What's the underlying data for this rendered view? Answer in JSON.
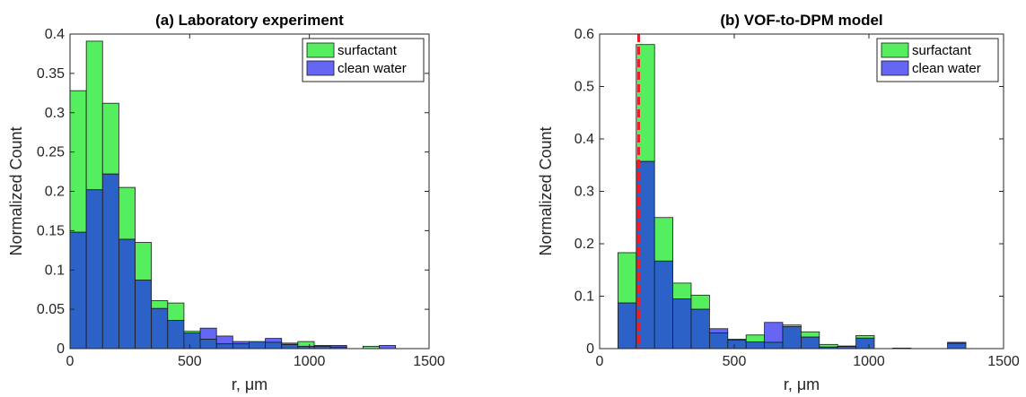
{
  "chart_data": [
    {
      "type": "bar",
      "title": "(a)  Laboratory experiment",
      "xlabel": "r, μm",
      "ylabel": "Normalized Count",
      "xlim": [
        0,
        1500
      ],
      "ylim": [
        0,
        0.4
      ],
      "xticks": [
        0,
        500,
        1000,
        1500
      ],
      "yticks": [
        0,
        0.05,
        0.1,
        0.15,
        0.2,
        0.25,
        0.3,
        0.35,
        0.4
      ],
      "ytick_labels": [
        "0",
        "0.05",
        "0.1",
        "0.15",
        "0.2",
        "0.25",
        "0.3",
        "0.35",
        "0.4"
      ],
      "legend_position": "top-right",
      "bin_edges": [
        0,
        68,
        136,
        204,
        272,
        340,
        408,
        476,
        544,
        612,
        680,
        748,
        816,
        884,
        952,
        1020,
        1088,
        1156,
        1224,
        1292,
        1360
      ],
      "overlap_color": "#2c62c8",
      "series": [
        {
          "name": "surfactant",
          "color": "#55ee5e",
          "values": [
            0.328,
            0.391,
            0.312,
            0.205,
            0.135,
            0.061,
            0.058,
            0.022,
            0.012,
            0.006,
            0.006,
            0.009,
            0.008,
            0.005,
            0.009,
            0.003,
            0.002,
            0.0,
            0.003,
            0.0
          ]
        },
        {
          "name": "clean water",
          "color": "#6566f3",
          "values": [
            0.148,
            0.202,
            0.222,
            0.139,
            0.087,
            0.051,
            0.036,
            0.02,
            0.026,
            0.016,
            0.009,
            0.009,
            0.013,
            0.007,
            0.003,
            0.004,
            0.004,
            0.0,
            0.0,
            0.004
          ]
        }
      ]
    },
    {
      "type": "bar",
      "title": "(b) VOF-to-DPM model",
      "xlabel": "r, μm",
      "ylabel": "Normalized Count",
      "xlim": [
        0,
        1500
      ],
      "ylim": [
        0,
        0.6
      ],
      "xticks": [
        0,
        500,
        1000,
        1500
      ],
      "yticks": [
        0,
        0.1,
        0.2,
        0.3,
        0.4,
        0.5,
        0.6
      ],
      "ytick_labels": [
        "0",
        "0.1",
        "0.2",
        "0.3",
        "0.4",
        "0.5",
        "0.6"
      ],
      "legend_position": "top-right",
      "reference_line_x": 145,
      "reference_line_color": "#e8202a",
      "bin_edges": [
        68,
        136,
        204,
        272,
        340,
        408,
        476,
        544,
        612,
        680,
        748,
        816,
        884,
        952,
        1020,
        1088,
        1156,
        1224,
        1292,
        1360,
        1428
      ],
      "overlap_color": "#2c62c8",
      "series": [
        {
          "name": "surfactant",
          "color": "#55ee5e",
          "values": [
            0.183,
            0.58,
            0.25,
            0.125,
            0.102,
            0.03,
            0.018,
            0.026,
            0.012,
            0.045,
            0.032,
            0.008,
            0.005,
            0.025,
            0.0,
            0.001,
            0.0,
            0.0,
            0.01,
            0.0
          ]
        },
        {
          "name": "clean water",
          "color": "#6566f3",
          "values": [
            0.087,
            0.357,
            0.167,
            0.095,
            0.075,
            0.038,
            0.016,
            0.013,
            0.05,
            0.042,
            0.022,
            0.003,
            0.004,
            0.02,
            0.0,
            0.0,
            0.0,
            0.0,
            0.012,
            0.0
          ]
        }
      ]
    }
  ]
}
